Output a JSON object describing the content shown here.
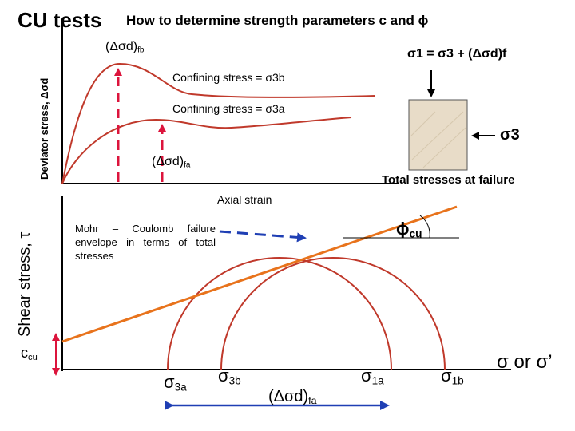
{
  "title": "CU tests",
  "subtitle": "How to determine strength parameters c and ϕ",
  "top_plot": {
    "y_axis_label": "Deviator stress, Δσd",
    "x_axis_label": "Axial strain",
    "curve_b_label": "Confining stress = σ3b",
    "curve_a_label": "Confining stress = σ3a",
    "peak_b": {
      "main": "(Δσd)",
      "sub": "fb"
    },
    "peak_a": {
      "main": "(Δσd)",
      "sub": "fa"
    },
    "curve_b_color": "#c0392b",
    "curve_a_color": "#c0392b",
    "marker_color": "#dc143c"
  },
  "specimen": {
    "sigma1_eq": "σ1 = σ3 + (Δσd)f",
    "sigma3": "σ3",
    "caption": "Total stresses at failure",
    "fill_color": "#e8dcc8"
  },
  "mohr_plot": {
    "y_axis_label": "Shear stress, τ",
    "c_label": {
      "main": "c",
      "sub": "cu"
    },
    "phi_label": {
      "main": "ϕ",
      "sub": "cu"
    },
    "envelope_note": "Mohr – Coulomb failure envelope in terms of total stresses",
    "sigma3a": {
      "main": "σ",
      "sub": "3a"
    },
    "sigma3b": {
      "main": "σ",
      "sub": "3b"
    },
    "sigma1a": {
      "main": "σ",
      "sub": "1a"
    },
    "sigma1b": {
      "main": "σ",
      "sub": "1b"
    },
    "delta_sigma_fa": {
      "main": "(Δσd)",
      "sub": "fa"
    },
    "x_axis_label": "σ or σ’",
    "envelope_color": "#e8731c",
    "circle_color": "#c0392b",
    "arrow_color": "#1f3fb4"
  }
}
